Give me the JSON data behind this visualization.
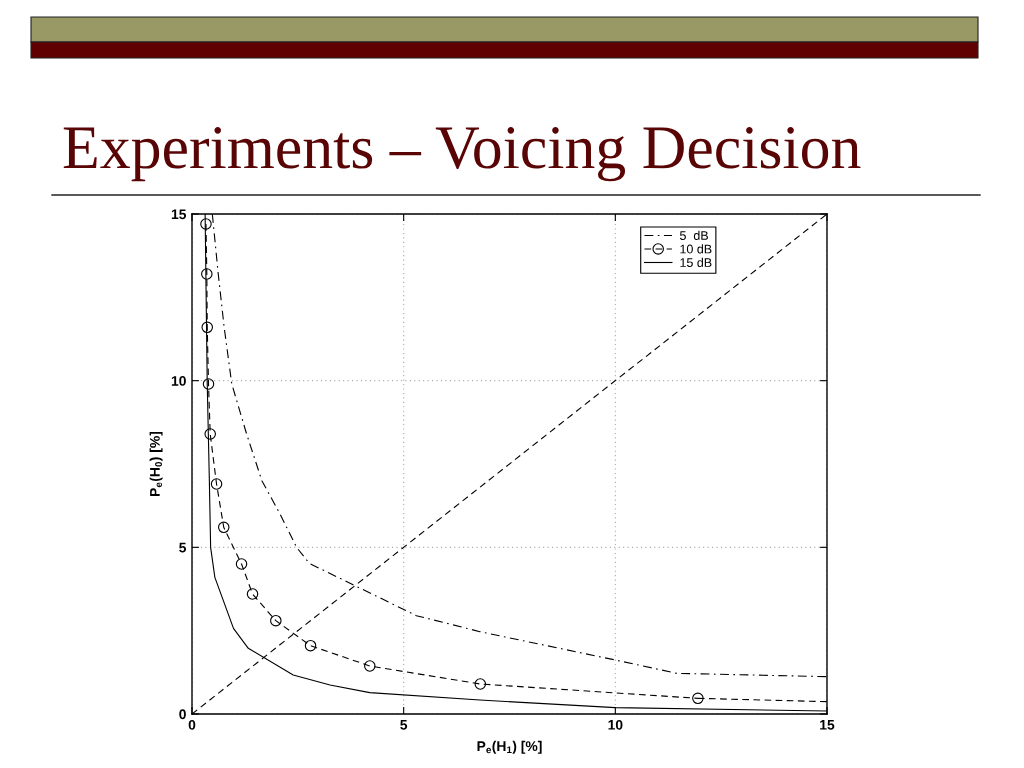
{
  "chart_data": {
    "type": "line",
    "title": "Experiments – Voicing Decision",
    "xlabel": "P$_{e}$(H$_{1}$) [%]",
    "ylabel": "P$_{e}$(H$_{0}$) [%]",
    "xlim": [
      0,
      15
    ],
    "ylim": [
      0,
      15
    ],
    "xticks": [
      0,
      5,
      10,
      15
    ],
    "yticks": [
      0,
      5,
      10,
      15
    ],
    "grid": true,
    "legend": "top right",
    "series": [
      {
        "name": "5  dB",
        "color": "#000000",
        "line_style": "dashdot",
        "marker": "none",
        "x": [
          0.48,
          0.62,
          0.76,
          0.94,
          1.29,
          1.65,
          2.08,
          2.47,
          2.77,
          5.3,
          6.8,
          10.0,
          11.45,
          15
        ],
        "values": [
          15,
          13.2,
          11.6,
          9.9,
          8.4,
          7.0,
          6.0,
          5.0,
          4.52,
          2.95,
          2.47,
          1.62,
          1.22,
          1.12
        ]
      },
      {
        "name": "10 dB",
        "color": "#000000",
        "line_style": "dashed",
        "marker": "circle",
        "x": [
          0.33,
          0.35,
          0.36,
          0.39,
          0.43,
          0.58,
          0.75,
          1.17,
          1.43,
          1.98,
          2.8,
          4.2,
          6.81,
          11.95
        ],
        "values": [
          14.7,
          13.2,
          11.6,
          9.9,
          8.4,
          6.9,
          5.6,
          4.5,
          3.6,
          2.8,
          2.05,
          1.44,
          0.9,
          0.47
        ]
      },
      {
        "name": "15 dB",
        "color": "#000000",
        "line_style": "solid",
        "marker": "none",
        "x": [
          0.31,
          0.36,
          0.41,
          0.44,
          0.54,
          0.98,
          1.33,
          2.39,
          3.26,
          4.2,
          6.8,
          10.0,
          15
        ],
        "values": [
          15,
          9.9,
          7.0,
          5.0,
          4.1,
          2.57,
          1.97,
          1.17,
          0.87,
          0.64,
          0.42,
          0.19,
          0.09
        ]
      },
      {
        "color": "#000000",
        "line_style": "dashed",
        "marker": "none",
        "x": [
          11.95,
          15
        ],
        "values": [
          0.47,
          0.37
        ]
      },
      {
        "color": "#000000",
        "line_style": "dashed",
        "marker": "none",
        "x": [
          0,
          15
        ],
        "values": [
          0,
          15
        ]
      }
    ]
  }
}
